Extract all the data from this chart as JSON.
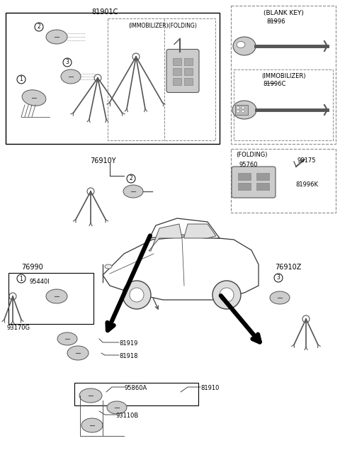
{
  "bg_color": "#ffffff",
  "fig_width": 4.8,
  "fig_height": 6.56,
  "dpi": 100,
  "labels": {
    "main_top": "81901C",
    "immob_folding": "(IMMOBILIZER)(FOLDING)",
    "blank_key_title": "(BLANK KEY)",
    "immobilizer_title": "(IMMOBILIZER)",
    "folding_title": "(FOLDING)",
    "p81996": "81996",
    "p81996C": "81996C",
    "p95760": "95760",
    "p98175": "98175",
    "p81996K": "81996K",
    "p76910Y": "76910Y",
    "p76990": "76990",
    "p95440I": "95440I",
    "p93170G": "93170G",
    "p81919": "81919",
    "p81918": "81918",
    "p95860A": "95860A",
    "p81910": "81910",
    "p93110B": "93110B",
    "p76910Z": "76910Z"
  },
  "num1": "1",
  "num2": "2",
  "num3": "3"
}
